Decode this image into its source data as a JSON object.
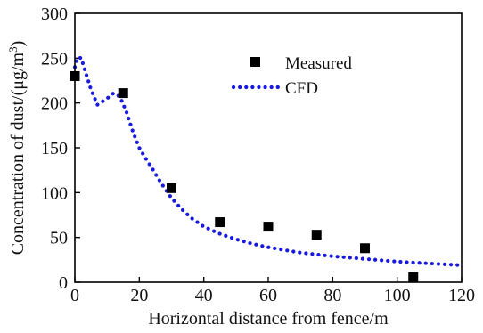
{
  "chart_data": {
    "type": "scatter",
    "title": "",
    "xlabel": "Horizontal distance from fence/m",
    "ylabel_main": "Concentration of dust/(",
    "ylabel_unit_mu": "μ",
    "ylabel_unit_rest": "g/m",
    "ylabel_sup": "3",
    "ylabel_close": ")",
    "xlim": [
      0,
      120
    ],
    "ylim": [
      0,
      300
    ],
    "xticks": [
      "0",
      "20",
      "40",
      "60",
      "80",
      "100",
      "120"
    ],
    "yticks": [
      "0",
      "50",
      "100",
      "150",
      "200",
      "250",
      "300"
    ],
    "legend_position": "top-right",
    "series": [
      {
        "name": "Measured",
        "kind": "marker-square",
        "color": "#000000",
        "x": [
          0,
          15,
          30,
          45,
          60,
          75,
          90,
          105
        ],
        "y": [
          230,
          211,
          105,
          67,
          62,
          53,
          38,
          6
        ]
      },
      {
        "name": "CFD",
        "kind": "dotted-line",
        "color": "#1a1adf",
        "x": [
          0,
          1,
          2,
          3,
          5,
          7,
          10,
          12,
          14,
          16,
          18,
          20,
          22,
          24,
          26,
          28,
          30,
          33,
          36,
          40,
          45,
          50,
          55,
          60,
          65,
          70,
          80,
          90,
          100,
          110,
          120
        ],
        "y": [
          240,
          251,
          250,
          238,
          215,
          198,
          205,
          211,
          207,
          190,
          168,
          150,
          138,
          127,
          115,
          104,
          94,
          82,
          72,
          62,
          54,
          48,
          43,
          39,
          36,
          33,
          29,
          26,
          23,
          21,
          19
        ]
      }
    ]
  }
}
